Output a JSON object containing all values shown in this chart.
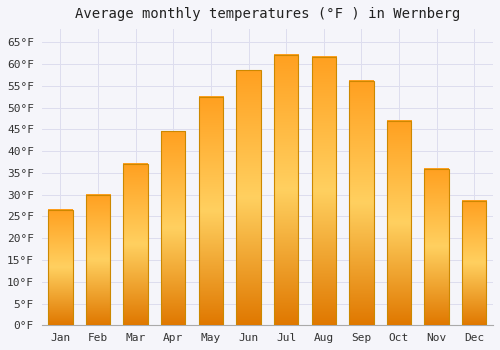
{
  "title": "Average monthly temperatures (°F ) in Wernberg",
  "months": [
    "Jan",
    "Feb",
    "Mar",
    "Apr",
    "May",
    "Jun",
    "Jul",
    "Aug",
    "Sep",
    "Oct",
    "Nov",
    "Dec"
  ],
  "values": [
    26.5,
    30.0,
    37.0,
    44.5,
    52.5,
    58.5,
    62.0,
    61.5,
    56.0,
    47.0,
    36.0,
    28.5
  ],
  "bar_color_top": "#FFA500",
  "bar_color_mid": "#FFD060",
  "bar_color_bottom": "#F08000",
  "bar_edge_color": "#CC8800",
  "background_color": "#F5F5FA",
  "plot_bg_color": "#F5F5FA",
  "grid_color": "#DDDDEE",
  "ylim": [
    0,
    68
  ],
  "yticks": [
    0,
    5,
    10,
    15,
    20,
    25,
    30,
    35,
    40,
    45,
    50,
    55,
    60,
    65
  ],
  "title_fontsize": 10,
  "tick_fontsize": 8,
  "tick_font_family": "monospace",
  "bar_width": 0.65
}
